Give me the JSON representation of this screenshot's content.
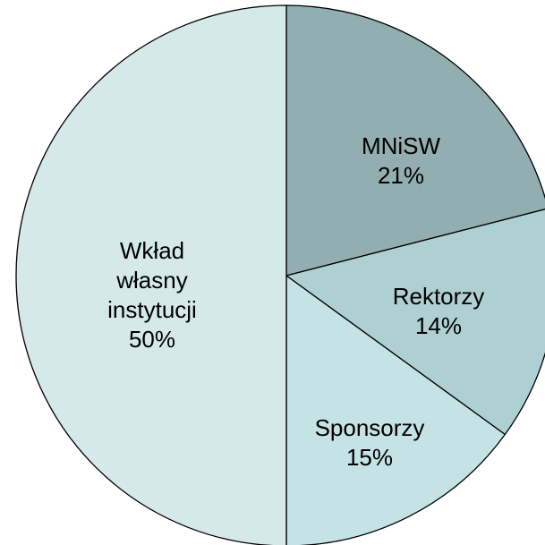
{
  "chart_data": {
    "type": "pie",
    "categories": [
      "MNiSW",
      "Rektorzy",
      "Sponsorzy",
      "Wkład własny instytucji"
    ],
    "values": [
      21,
      14,
      15,
      50
    ],
    "value_labels": [
      "21%",
      "14%",
      "15%",
      "50%"
    ],
    "colors": [
      "#93aeb0",
      "#afd0d2",
      "#c5e2e4",
      "#d5e9eb"
    ]
  }
}
